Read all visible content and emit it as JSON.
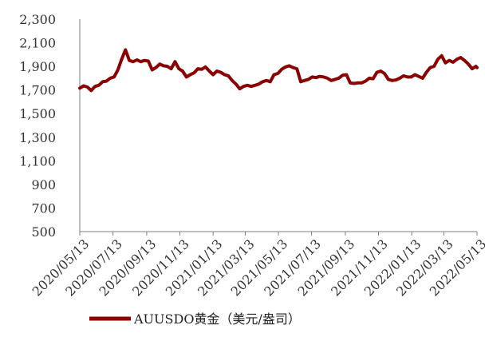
{
  "chart_data": {
    "type": "line",
    "title": "",
    "xlabel": "",
    "ylabel": "",
    "ylim": [
      500,
      2300
    ],
    "y_ticks": [
      "2,300",
      "2,100",
      "1,900",
      "1,700",
      "1,500",
      "1,300",
      "1,100",
      "900",
      "700",
      "500"
    ],
    "x_ticks": [
      "2020/05/13",
      "2020/07/13",
      "2020/09/13",
      "2020/11/13",
      "2021/01/13",
      "2021/03/13",
      "2021/05/13",
      "2021/07/13",
      "2021/09/13",
      "2021/11/13",
      "2022/01/13",
      "2022/03/13",
      "2022/05/13"
    ],
    "grid": false,
    "legend_position": "bottom",
    "series": [
      {
        "name": "AUUSDO黄金（美元/盎司）",
        "color": "#8b0000",
        "x": [
          "2020/05/13",
          "2020/05/20",
          "2020/05/27",
          "2020/06/03",
          "2020/06/10",
          "2020/06/17",
          "2020/06/24",
          "2020/07/01",
          "2020/07/08",
          "2020/07/15",
          "2020/07/22",
          "2020/07/29",
          "2020/08/05",
          "2020/08/12",
          "2020/08/19",
          "2020/08/26",
          "2020/09/02",
          "2020/09/09",
          "2020/09/16",
          "2020/09/23",
          "2020/09/30",
          "2020/10/07",
          "2020/10/14",
          "2020/10/21",
          "2020/10/28",
          "2020/11/04",
          "2020/11/11",
          "2020/11/18",
          "2020/11/25",
          "2020/12/02",
          "2020/12/09",
          "2020/12/16",
          "2020/12/23",
          "2020/12/30",
          "2021/01/06",
          "2021/01/13",
          "2021/01/20",
          "2021/01/27",
          "2021/02/03",
          "2021/02/10",
          "2021/02/17",
          "2021/02/24",
          "2021/03/03",
          "2021/03/10",
          "2021/03/17",
          "2021/03/24",
          "2021/03/31",
          "2021/04/07",
          "2021/04/14",
          "2021/04/21",
          "2021/04/28",
          "2021/05/05",
          "2021/05/12",
          "2021/05/19",
          "2021/05/26",
          "2021/06/02",
          "2021/06/09",
          "2021/06/16",
          "2021/06/23",
          "2021/06/30",
          "2021/07/07",
          "2021/07/14",
          "2021/07/21",
          "2021/07/28",
          "2021/08/04",
          "2021/08/11",
          "2021/08/18",
          "2021/08/25",
          "2021/09/01",
          "2021/09/08",
          "2021/09/15",
          "2021/09/22",
          "2021/09/29",
          "2021/10/06",
          "2021/10/13",
          "2021/10/20",
          "2021/10/27",
          "2021/11/03",
          "2021/11/10",
          "2021/11/17",
          "2021/11/24",
          "2021/12/01",
          "2021/12/08",
          "2021/12/15",
          "2021/12/22",
          "2021/12/29",
          "2022/01/05",
          "2022/01/12",
          "2022/01/19",
          "2022/01/26",
          "2022/02/02",
          "2022/02/09",
          "2022/02/16",
          "2022/02/23",
          "2022/03/02",
          "2022/03/09",
          "2022/03/16",
          "2022/03/23",
          "2022/03/30",
          "2022/04/06",
          "2022/04/13",
          "2022/04/20",
          "2022/04/27",
          "2022/05/04",
          "2022/05/11",
          "2022/05/13"
        ],
        "values": [
          1715,
          1735,
          1725,
          1695,
          1730,
          1740,
          1770,
          1775,
          1800,
          1810,
          1870,
          1960,
          2040,
          1950,
          1940,
          1955,
          1940,
          1950,
          1945,
          1870,
          1890,
          1920,
          1905,
          1900,
          1880,
          1940,
          1880,
          1860,
          1810,
          1830,
          1845,
          1880,
          1875,
          1895,
          1860,
          1830,
          1860,
          1850,
          1830,
          1820,
          1780,
          1750,
          1710,
          1730,
          1740,
          1730,
          1740,
          1750,
          1770,
          1780,
          1770,
          1830,
          1840,
          1875,
          1895,
          1905,
          1890,
          1880,
          1770,
          1780,
          1790,
          1810,
          1805,
          1815,
          1810,
          1800,
          1780,
          1790,
          1800,
          1825,
          1830,
          1760,
          1755,
          1760,
          1760,
          1775,
          1800,
          1795,
          1850,
          1860,
          1840,
          1790,
          1780,
          1785,
          1800,
          1820,
          1810,
          1810,
          1830,
          1815,
          1800,
          1850,
          1890,
          1900,
          1960,
          1990,
          1930,
          1950,
          1935,
          1960,
          1975,
          1950,
          1920,
          1880,
          1900,
          1890
        ]
      }
    ]
  }
}
